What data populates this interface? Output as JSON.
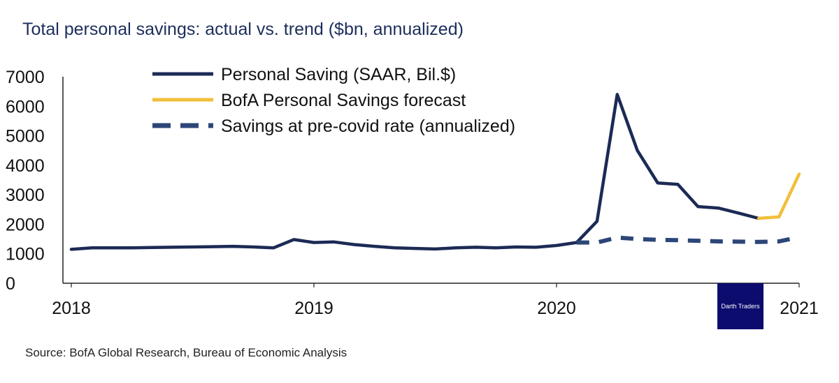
{
  "chart_data": {
    "type": "line",
    "title": "Total personal savings: actual vs. trend ($bn, annualized)",
    "source": "Source: BofA Global Research, Bureau of Economic Analysis",
    "ylim": [
      0,
      7000
    ],
    "y_ticks": [
      "0",
      "1000",
      "2000",
      "3000",
      "4000",
      "5000",
      "6000",
      "7000"
    ],
    "x_range": [
      2018.0,
      2021.0
    ],
    "x_ticks": [
      {
        "label": "2018",
        "value": 2018.0
      },
      {
        "label": "2019",
        "value": 2019.0
      },
      {
        "label": "2020",
        "value": 2020.0
      },
      {
        "label": "2021",
        "value": 2021.0
      }
    ],
    "legend_position": "top-center",
    "series": [
      {
        "name": "Personal Saving (SAAR, Bil.$)",
        "color": "#1c2a55",
        "style": "solid",
        "x": [
          2018.0,
          2018.083,
          2018.167,
          2018.25,
          2018.333,
          2018.417,
          2018.5,
          2018.583,
          2018.667,
          2018.75,
          2018.833,
          2018.917,
          2019.0,
          2019.083,
          2019.167,
          2019.25,
          2019.333,
          2019.417,
          2019.5,
          2019.583,
          2019.667,
          2019.75,
          2019.833,
          2019.917,
          2020.0,
          2020.083,
          2020.167,
          2020.25,
          2020.333,
          2020.417,
          2020.5,
          2020.583,
          2020.667,
          2020.75,
          2020.833
        ],
        "values": [
          1150,
          1200,
          1200,
          1200,
          1210,
          1220,
          1230,
          1240,
          1250,
          1230,
          1200,
          1480,
          1380,
          1400,
          1310,
          1250,
          1200,
          1180,
          1160,
          1200,
          1220,
          1200,
          1230,
          1220,
          1280,
          1380,
          2100,
          6400,
          4500,
          3400,
          3350,
          2600,
          2550,
          2380,
          2200
        ]
      },
      {
        "name": "BofA Personal Savings forecast",
        "color": "#f2bf3c",
        "style": "solid",
        "x": [
          2020.833,
          2020.917,
          2021.0
        ],
        "values": [
          2200,
          2250,
          3700
        ]
      },
      {
        "name": "Savings at pre-covid rate (annualized)",
        "color": "#2d4678",
        "style": "dashed",
        "x": [
          2020.083,
          2020.167,
          2020.25,
          2020.333,
          2020.417,
          2020.5,
          2020.583,
          2020.667,
          2020.75,
          2020.833,
          2020.917,
          2021.0
        ],
        "values": [
          1380,
          1380,
          1550,
          1500,
          1470,
          1460,
          1440,
          1420,
          1410,
          1400,
          1420,
          1560
        ]
      }
    ]
  },
  "watermark": {
    "text": "Darth Traders"
  }
}
